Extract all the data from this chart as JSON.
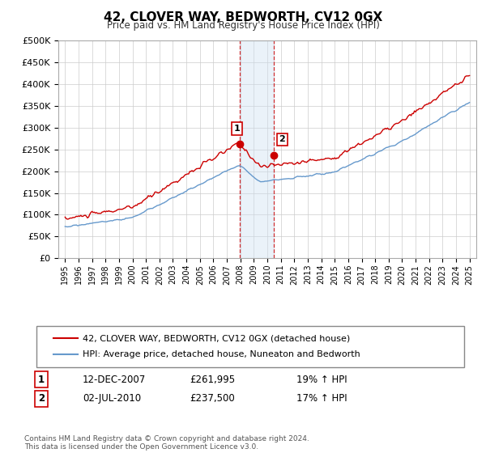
{
  "title": "42, CLOVER WAY, BEDWORTH, CV12 0GX",
  "subtitle": "Price paid vs. HM Land Registry's House Price Index (HPI)",
  "footer": "Contains HM Land Registry data © Crown copyright and database right 2024.\nThis data is licensed under the Open Government Licence v3.0.",
  "legend_line1": "42, CLOVER WAY, BEDWORTH, CV12 0GX (detached house)",
  "legend_line2": "HPI: Average price, detached house, Nuneaton and Bedworth",
  "sale1_label": "1",
  "sale1_date": "12-DEC-2007",
  "sale1_price": "£261,995",
  "sale1_hpi": "19% ↑ HPI",
  "sale2_label": "2",
  "sale2_date": "02-JUL-2010",
  "sale2_price": "£237,500",
  "sale2_hpi": "17% ↑ HPI",
  "sale1_x": 2007.95,
  "sale1_y": 261995,
  "sale2_x": 2010.5,
  "sale2_y": 237500,
  "ylim": [
    0,
    500000
  ],
  "xlim": [
    1994.5,
    2025.5
  ],
  "red_color": "#cc0000",
  "blue_color": "#6699cc",
  "shade_color": "#cce0f0",
  "bg_color": "#ffffff",
  "grid_color": "#cccccc"
}
